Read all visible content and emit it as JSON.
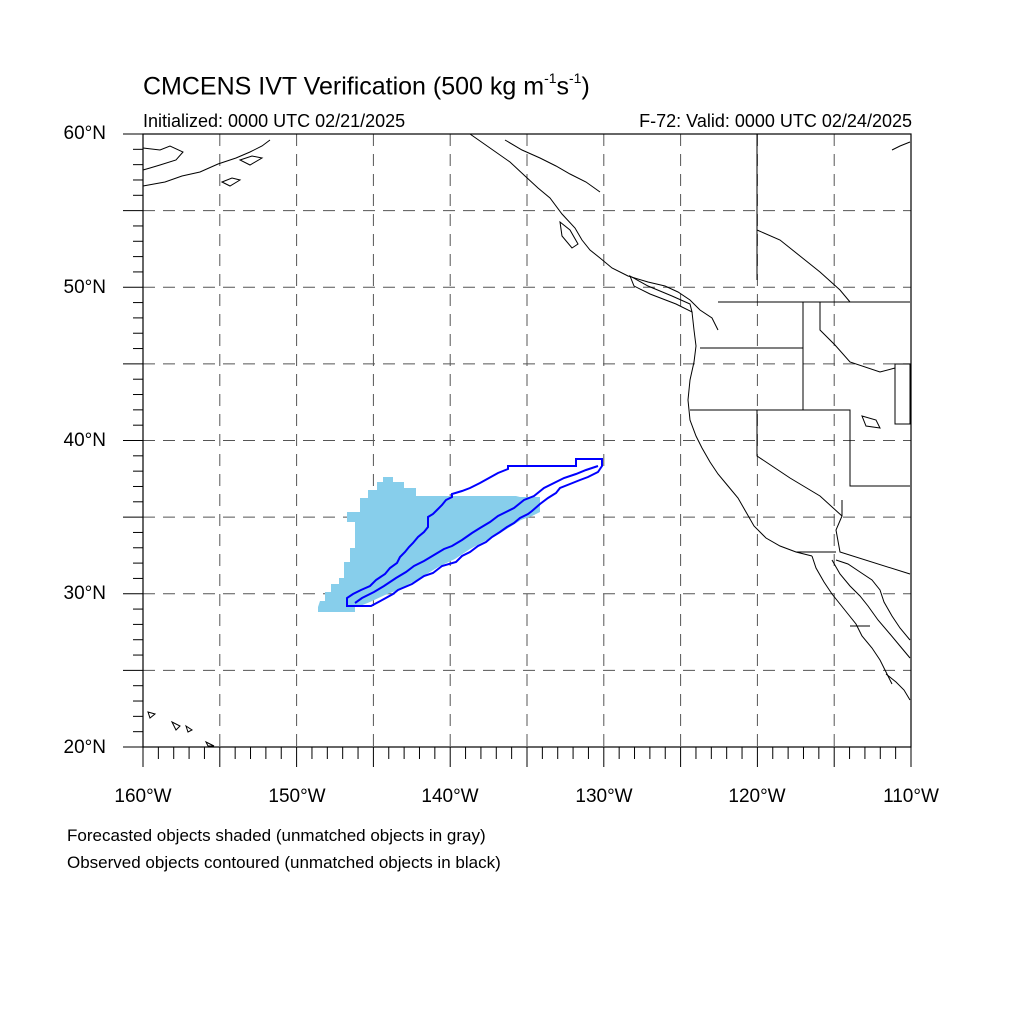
{
  "title": {
    "prefix": "CMCENS IVT Verification (500 kg m",
    "exp1": "-1",
    "mid": "s",
    "exp2": "-1",
    "suffix": ")"
  },
  "initialized": "Initialized: 0000 UTC 02/21/2025",
  "valid": "F-72: Valid: 0000 UTC 02/24/2025",
  "lat_labels": [
    "60°N",
    "50°N",
    "40°N",
    "30°N",
    "20°N"
  ],
  "lon_labels": [
    "160°W",
    "150°W",
    "140°W",
    "130°W",
    "120°W",
    "110°W"
  ],
  "legend": {
    "line1": "Forecasted objects shaded (unmatched objects in gray)",
    "line2": "Observed objects contoured (unmatched objects in black)"
  },
  "colors": {
    "forecast_fill": "#87ceeb",
    "observed_contour": "#0000ff",
    "coastline": "#000000",
    "grid": "#555555"
  },
  "map_extent": {
    "lon_min": -160,
    "lon_max": -110,
    "lat_min": 20,
    "lat_max": 60
  }
}
